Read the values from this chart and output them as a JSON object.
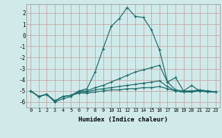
{
  "xlabel": "Humidex (Indice chaleur)",
  "xlim": [
    -0.5,
    23.5
  ],
  "ylim": [
    -6.5,
    2.8
  ],
  "yticks": [
    2,
    1,
    0,
    -1,
    -2,
    -3,
    -4,
    -5,
    -6
  ],
  "xticks": [
    0,
    1,
    2,
    3,
    4,
    5,
    6,
    7,
    8,
    9,
    10,
    11,
    12,
    13,
    14,
    15,
    16,
    17,
    18,
    19,
    20,
    21,
    22,
    23
  ],
  "bg_color": "#d0eaea",
  "grid_color": "#c8a0a0",
  "line_color": "#1a6b6b",
  "x": [
    0,
    1,
    2,
    3,
    4,
    5,
    6,
    7,
    8,
    9,
    10,
    11,
    12,
    13,
    14,
    15,
    16,
    17,
    18,
    19,
    20,
    21,
    22,
    23
  ],
  "y_main": [
    -5.0,
    -5.5,
    -5.3,
    -6.0,
    -5.7,
    -5.5,
    -5.0,
    -4.8,
    -3.3,
    -1.2,
    0.8,
    1.5,
    2.5,
    1.7,
    1.6,
    0.5,
    -1.3,
    -4.2,
    -3.8,
    -5.0,
    -4.5,
    -5.0,
    -5.1,
    -5.1
  ],
  "y_line2": [
    -5.0,
    -5.5,
    -5.3,
    -5.9,
    -5.5,
    -5.4,
    -5.0,
    -5.0,
    -4.7,
    -4.5,
    -4.2,
    -3.9,
    -3.6,
    -3.3,
    -3.1,
    -2.9,
    -2.7,
    -4.2,
    -4.9,
    -5.0,
    -5.0,
    -4.9,
    -5.0,
    -5.1
  ],
  "y_line3": [
    -5.0,
    -5.5,
    -5.3,
    -5.9,
    -5.5,
    -5.4,
    -5.1,
    -5.1,
    -4.9,
    -4.8,
    -4.7,
    -4.6,
    -4.5,
    -4.4,
    -4.3,
    -4.2,
    -4.1,
    -4.6,
    -5.0,
    -5.1,
    -5.0,
    -5.0,
    -5.0,
    -5.1
  ],
  "y_line4": [
    -5.0,
    -5.5,
    -5.3,
    -5.9,
    -5.5,
    -5.4,
    -5.2,
    -5.2,
    -5.1,
    -5.0,
    -4.9,
    -4.9,
    -4.8,
    -4.8,
    -4.7,
    -4.7,
    -4.6,
    -4.8,
    -5.0,
    -5.1,
    -5.1,
    -5.0,
    -5.0,
    -5.1
  ]
}
